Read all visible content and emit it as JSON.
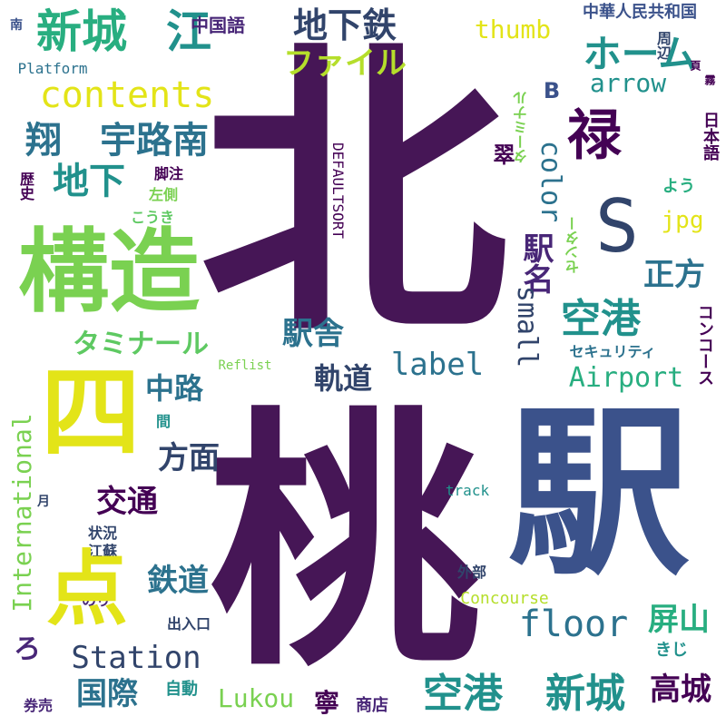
{
  "palette": {
    "purple": "#440154",
    "indigo": "#482677",
    "blue": "#3b528b",
    "steel": "#2c728e",
    "teal": "#21918c",
    "green": "#28ae80",
    "lime": "#5ec962",
    "lightgreen": "#7ad151",
    "yellowgreen": "#b5de2b",
    "yellow": "#e3e418",
    "darkblue": "#31446b"
  },
  "words": [
    "北",
    "新城",
    "江",
    "地下鉄",
    "中国語",
    "thumb",
    "中華人民共和国",
    "南",
    "周辺",
    "ホーム",
    "Platform",
    "ファイル",
    "arrow",
    "contents",
    "翔",
    "宇路南",
    "禄",
    "地下",
    "DEFAULTSORT",
    "構造",
    "S",
    "脚注",
    "歴史",
    "左側",
    "こうき",
    "jpg",
    "日本語",
    "正方",
    "駅名",
    "よう",
    "駅舎",
    "空港",
    "タミナール",
    "label",
    "Reflist",
    "セキュリティ",
    "軌道",
    "中路",
    "Airport",
    "四",
    "桃",
    "駅",
    "方面",
    "交通",
    "月",
    "track",
    "状況",
    "江蘇",
    "鉄道",
    "International",
    "外部",
    "Concourse",
    "のり",
    "出入口",
    "floor",
    "屏山",
    "Station",
    "きじ",
    "国際",
    "空港",
    "新城",
    "高城",
    "券売",
    "自動",
    "Lukou",
    "寧",
    "商店",
    "small",
    "color",
    "B",
    "翠",
    "コンコース",
    "ターミナル",
    "センター",
    "間",
    "ろ",
    "点",
    "霧",
    "頁"
  ]
}
